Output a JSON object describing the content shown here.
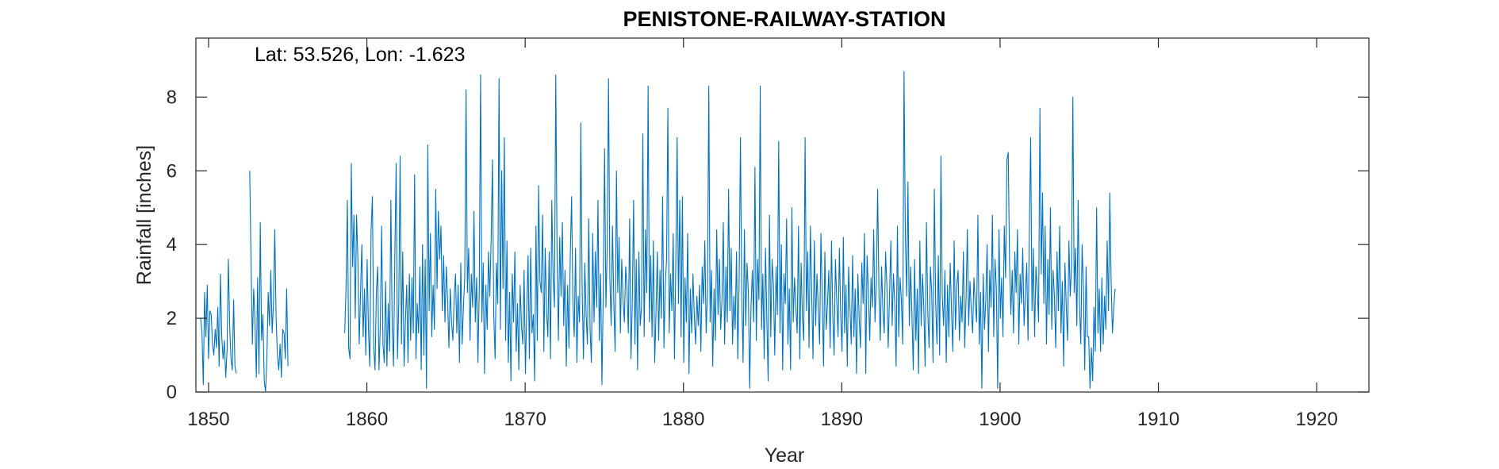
{
  "chart_data": {
    "type": "line",
    "title": "PENISTONE-RAILWAY-STATION",
    "annotation": "Lat: 53.526, Lon: -1.623",
    "xlabel": "Year",
    "ylabel": "Rainfall [inches]",
    "xlim": [
      1849.2,
      1923.3
    ],
    "ylim": [
      0,
      9.6
    ],
    "xticks": [
      1850,
      1860,
      1870,
      1880,
      1890,
      1900,
      1910,
      1920
    ],
    "yticks": [
      0,
      2,
      4,
      6,
      8
    ],
    "grid": false,
    "line_color": "#0072BD",
    "series": [
      {
        "segments": [
          {
            "start": 1849.5,
            "step": 0.08333,
            "values": [
              2.0,
              1.6,
              0.2,
              2.7,
              1.5,
              2.9,
              0.9,
              2.2,
              2.1,
              1.3,
              1.0,
              1.7,
              1.2,
              2.3,
              0.7,
              3.2,
              1.5,
              0.9,
              1.4,
              0.4,
              1.1,
              3.6,
              1.8,
              0.9,
              0.6,
              2.5,
              0.7,
              0.5
            ]
          },
          {
            "start": 1852.6,
            "step": 0.08333,
            "values": [
              6.0,
              3.5,
              1.3,
              2.8,
              1.9,
              0.4,
              3.1,
              0.5,
              4.6,
              1.4,
              2.1,
              0.3,
              0.0,
              0.9,
              2.7,
              1.8,
              3.3,
              1.6,
              2.4,
              4.4,
              2.0,
              1.0,
              0.6,
              1.3,
              0.4,
              1.7,
              1.6,
              0.9,
              2.8,
              0.7
            ]
          },
          {
            "start": 1858.6,
            "step": 0.08333,
            "values": [
              1.6,
              2.8,
              5.2,
              1.2,
              0.9,
              6.2,
              3.4,
              4.8,
              2.0,
              4.8,
              3.6,
              1.3,
              2.7,
              4.0,
              1.5,
              2.8,
              1.0,
              3.6,
              1.7,
              0.7,
              4.4,
              5.3,
              1.2,
              0.6,
              2.7,
              3.4,
              0.6,
              1.8,
              4.5,
              1.3,
              0.8,
              3.0,
              0.7,
              2.4,
              1.1,
              5.2,
              1.8,
              0.7,
              3.7,
              6.2,
              0.9,
              2.4,
              6.4,
              1.3,
              3.8,
              0.7,
              1.9,
              2.9,
              0.8,
              3.2,
              1.4,
              3.1,
              1.6,
              5.9,
              0.9,
              2.4,
              1.6,
              3.4,
              0.6,
              4.0,
              1.0,
              3.6,
              0.1,
              6.7,
              2.2,
              4.3,
              1.5,
              2.9,
              1.7,
              5.5,
              2.8,
              4.9,
              3.6,
              4.5,
              2.2,
              3.7,
              1.9,
              3.4,
              2.5,
              1.2,
              2.8,
              1.9,
              1.4,
              2.6,
              3.2,
              1.6,
              2.9,
              0.8,
              3.5,
              1.3,
              2.3,
              3.1,
              8.2,
              2.7,
              3.9,
              1.4,
              3.2,
              2.3,
              4.9,
              1.9,
              3.1,
              0.8,
              2.8,
              8.6,
              1.9,
              3.5,
              0.5,
              2.9,
              1.7,
              3.8,
              2.6,
              4.1,
              6.3,
              2.1,
              0.9,
              3.5,
              2.4,
              8.5,
              1.7,
              6.0,
              2.8,
              6.9,
              1.4,
              4.1,
              0.8,
              2.7,
              0.3,
              3.2,
              1.9,
              3.8,
              1.1,
              2.4,
              0.6,
              2.9,
              1.8,
              1.3,
              3.3,
              0.5,
              2.3,
              3.7,
              0.9,
              3.9,
              1.6,
              2.1,
              0.3,
              4.5,
              1.4,
              5.6,
              3.0,
              2.7,
              4.8,
              1.1,
              3.9,
              2.2,
              1.5,
              3.8,
              0.9,
              5.2,
              3.1,
              2.3,
              8.6,
              3.7,
              1.4,
              4.2,
              2.6,
              4.6,
              1.8,
              3.3,
              0.7,
              2.9,
              1.2,
              3.7,
              5.3,
              2.4,
              1.5,
              3.9,
              0.8,
              2.6,
              1.9,
              7.3,
              2.8,
              0.9,
              3.5,
              2.1,
              1.3,
              4.7,
              1.7,
              0.8,
              4.3,
              1.9,
              3.8,
              2.3,
              5.2,
              1.4,
              3.2,
              0.2,
              2.7,
              6.6,
              2.3,
              3.9,
              8.5,
              3.1,
              1.8,
              4.5,
              2.4,
              1.1,
              6.0,
              2.7,
              4.2,
              1.6,
              3.6,
              2.5,
              1.9,
              3.4,
              2.8,
              1.6,
              4.7,
              0.9,
              2.4,
              5.2,
              1.3,
              3.6,
              0.6,
              3.8,
              1.8,
              2.3,
              7.0,
              1.5,
              4.4,
              2.7,
              8.3,
              1.9,
              3.7,
              1.5,
              4.1,
              0.8,
              2.2,
              3.8,
              1.4,
              3.3,
              2.0,
              5.3,
              1.2,
              2.9,
              3.6,
              7.7,
              1.6,
              3.2,
              2.2,
              4.3,
              0.9,
              3.5,
              6.9,
              2.4,
              5.2,
              1.5,
              5.3,
              0.8,
              3.1,
              1.9,
              4.3,
              0.5,
              2.8,
              1.6,
              3.2,
              2.1,
              1.3,
              2.6,
              1.8,
              2.9,
              1.1,
              3.4,
              2.4,
              4.1,
              1.6,
              2.7,
              8.3,
              1.9,
              3.3,
              0.7,
              2.8,
              1.4,
              4.4,
              2.1,
              3.6,
              1.7,
              2.5,
              4.6,
              1.3,
              3.4,
              1.9,
              5.5,
              2.2,
              3.9,
              1.3,
              2.6,
              1.7,
              3.8,
              0.9,
              3.0,
              6.9,
              2.6,
              0.8,
              4.4,
              1.8,
              3.5,
              2.7,
              0.1,
              2.3,
              3.3,
              1.9,
              6.1,
              1.4,
              3.6,
              2.5,
              8.3,
              1.7,
              3.2,
              0.9,
              3.9,
              2.0,
              0.3,
              4.8,
              1.5,
              3.6,
              2.9,
              1.0,
              3.4,
              2.1,
              6.8,
              1.6,
              4.0,
              0.6,
              3.2,
              2.4,
              4.7,
              1.3,
              2.8,
              0.6,
              5.0,
              1.9,
              3.1,
              2.3,
              1.6,
              4.5,
              0.9,
              3.5,
              2.0,
              1.4,
              6.9,
              2.2,
              3.8,
              1.2,
              4.5,
              2.7,
              0.9,
              4.1,
              1.8,
              3.2,
              2.3,
              1.3,
              4.3,
              2.6,
              0.7,
              3.8,
              1.7,
              2.4,
              3.3,
              1.2,
              4.1,
              2.1,
              1.0,
              3.6,
              2.5,
              1.5,
              3.9,
              2.1,
              1.1,
              4.2,
              1.6,
              2.9,
              0.7,
              3.4,
              2.3,
              1.3,
              3.7,
              1.5,
              2.8,
              0.5,
              3.2,
              2.0,
              1.2,
              3.5,
              2.4,
              4.3,
              0.5,
              3.7,
              2.7,
              1.4,
              3.1,
              2.3,
              4.4,
              1.9,
              3.0,
              5.5,
              2.7,
              1.4,
              3.4,
              2.2,
              1.6,
              3.8,
              2.9,
              1.2,
              2.6,
              4.1,
              1.8,
              3.2,
              2.4,
              0.7,
              4.5,
              1.5,
              3.1,
              2.5,
              1.3,
              8.7,
              4.3,
              2.6,
              5.7,
              1.8,
              3.4,
              2.1,
              0.6,
              3.6,
              1.4,
              2.8,
              0.5,
              4.1,
              1.8,
              3.2,
              2.3,
              0.7,
              4.6,
              2.2,
              1.2,
              3.4,
              2.7,
              0.8,
              5.5,
              2.4,
              1.3,
              3.7,
              1.0,
              6.4,
              2.6,
              1.8,
              3.3,
              0.8,
              2.9,
              1.5,
              3.5,
              2.2,
              1.1,
              4.1,
              1.7,
              2.9,
              3.3,
              1.4,
              2.6,
              1.9,
              3.8,
              1.2,
              2.5,
              4.4,
              1.8,
              3.0,
              2.2,
              1.6,
              3.1,
              2.4,
              1.9,
              4.8,
              1.3,
              2.7,
              0.1,
              3.2,
              1.7,
              2.5,
              4.0,
              1.1,
              3.3,
              2.3,
              4.8,
              1.5,
              3.6,
              2.8,
              0.1,
              4.4,
              2.0,
              3.1,
              1.5,
              4.5,
              3.1,
              6.3,
              6.5,
              3.5,
              2.1,
              3.3,
              1.6,
              3.8,
              2.7,
              4.4,
              1.3,
              3.2,
              2.4,
              3.9,
              1.8,
              2.6,
              3.5,
              1.4,
              4.3,
              6.9,
              2.2,
              3.9,
              1.5,
              3.4,
              2.8,
              1.9,
              7.7,
              3.2,
              5.4,
              2.4,
              4.5,
              1.3,
              3.6,
              2.1,
              5.0,
              1.7,
              3.3,
              2.6,
              1.2,
              3.8,
              2.2,
              4.5,
              1.6,
              3.0,
              0.7,
              3.5,
              2.3,
              1.4,
              4.1,
              2.6,
              3.4,
              8.0,
              2.7,
              3.9,
              1.8,
              5.2,
              2.4,
              1.3,
              4.0,
              2.8,
              0.6,
              3.4,
              1.5,
              1.5,
              0.1,
              1.2,
              0.3,
              2.3,
              1.1,
              5.0,
              1.6,
              2.8,
              1.1,
              3.1,
              1.3,
              2.6,
              1.7,
              4.1,
              2.2,
              5.4,
              3.0,
              1.6,
              2.3,
              2.8
            ]
          }
        ]
      }
    ]
  }
}
